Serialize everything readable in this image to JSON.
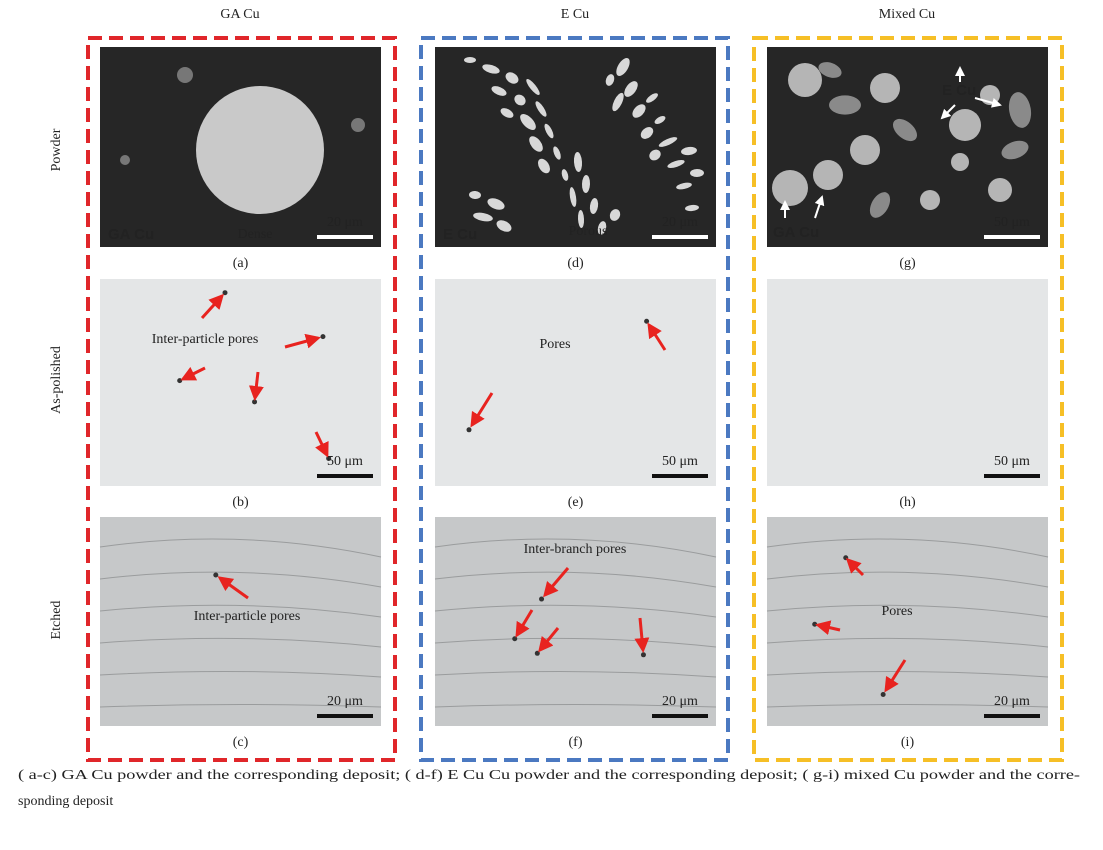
{
  "columns": [
    "GA Cu",
    "E Cu",
    "Mixed Cu"
  ],
  "rows": [
    "Powder",
    "As-polished",
    "Etched"
  ],
  "panels": [
    {
      "label": "(a)",
      "annotations": [
        "GA Cu",
        "Dense"
      ],
      "scale_bar": "20 μm"
    },
    {
      "label": "(b)",
      "annotations": [
        "Inter-particle pores"
      ],
      "scale_bar": "50 μm"
    },
    {
      "label": "(c)",
      "annotations": [
        "Inter-particle pores"
      ],
      "scale_bar": "20 μm"
    },
    {
      "label": "(d)",
      "annotations": [
        "E Cu",
        "Porous"
      ],
      "scale_bar": "20 μm"
    },
    {
      "label": "(e)",
      "annotations": [
        "Pores"
      ],
      "scale_bar": "50 μm"
    },
    {
      "label": "(f)",
      "annotations": [
        "Inter-branch pores"
      ],
      "scale_bar": "20 μm"
    },
    {
      "label": "(g)",
      "annotations": [
        "E Cu",
        "GA Cu"
      ],
      "scale_bar": "50 μm"
    },
    {
      "label": "(h)",
      "annotations": [],
      "scale_bar": "50 μm"
    },
    {
      "label": "(i)",
      "annotations": [
        "Pores"
      ],
      "scale_bar": "20 μm"
    }
  ],
  "caption": [
    "( a-c) GA Cu powder and the corresponding deposit; ( d-f) E Cu Cu powder and the corresponding deposit; ( g-i) mixed Cu powder and the corre-",
    "sponding deposit"
  ]
}
